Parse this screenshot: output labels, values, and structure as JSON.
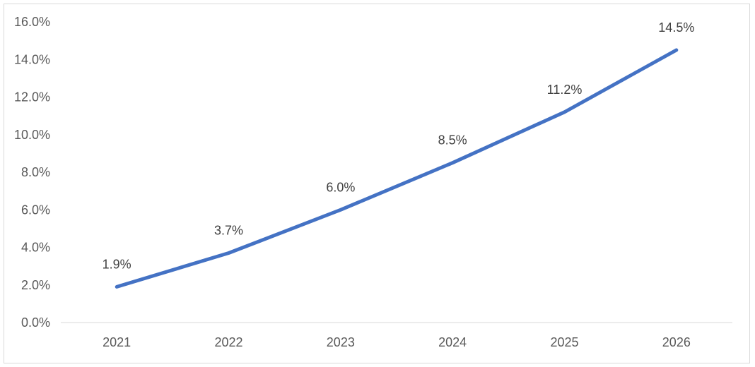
{
  "chart_data": {
    "type": "line",
    "categories": [
      "2021",
      "2022",
      "2023",
      "2024",
      "2025",
      "2026"
    ],
    "series": [
      {
        "values": [
          1.9,
          3.7,
          6.0,
          8.5,
          11.2,
          14.5
        ],
        "labels": [
          "1.9%",
          "3.7%",
          "6.0%",
          "8.5%",
          "11.2%",
          "14.5%"
        ]
      }
    ],
    "y_ticks": [
      "0.0%",
      "2.0%",
      "4.0%",
      "6.0%",
      "8.0%",
      "10.0%",
      "12.0%",
      "14.0%",
      "16.0%"
    ],
    "ylim": [
      0,
      16
    ],
    "y_step": 2,
    "grid": false,
    "line_color": "#4472c4",
    "axis_color": "#d9d9d9"
  }
}
